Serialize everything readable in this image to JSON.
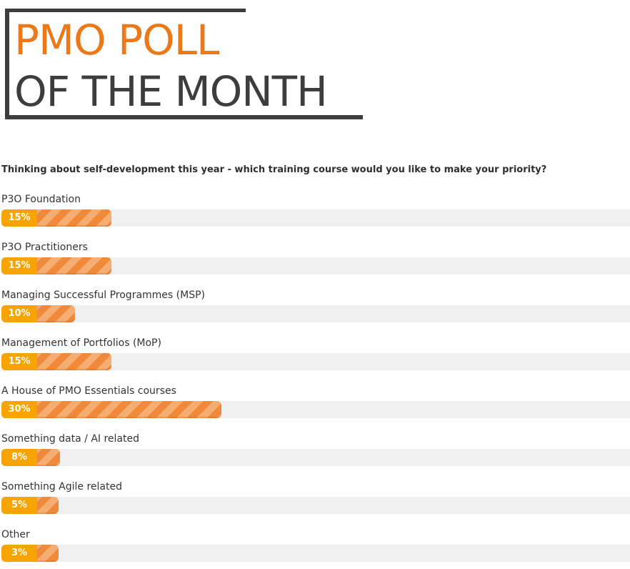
{
  "header": {
    "title_line1": "PMO POLL",
    "title_line2": "OF THE MONTH"
  },
  "question": "Thinking about self-development this year - which training course would you like to make your priority?",
  "colors": {
    "title_accent": "#ec7817",
    "title_dark": "#3d3d3d",
    "badge": "#f7a300",
    "bar_stripe_dark": "#f08a3a",
    "bar_stripe_light": "#f6ad71",
    "track": "#f0f0f0"
  },
  "chart_data": {
    "type": "bar",
    "orientation": "horizontal",
    "categories": [
      "P3O Foundation",
      "P3O Practitioners",
      "Managing Successful Programmes (MSP)",
      "Management of Portfolios (MoP)",
      "A House of PMO Essentials courses",
      "Something data / AI related",
      "Something Agile related",
      "Other"
    ],
    "values": [
      15,
      15,
      10,
      15,
      30,
      8,
      5,
      3
    ],
    "value_labels": [
      "15%",
      "15%",
      "10%",
      "15%",
      "30%",
      "8%",
      "5%",
      "3%"
    ],
    "unit": "%",
    "xlim": [
      0,
      100
    ],
    "title": "",
    "xlabel": "",
    "ylabel": ""
  }
}
